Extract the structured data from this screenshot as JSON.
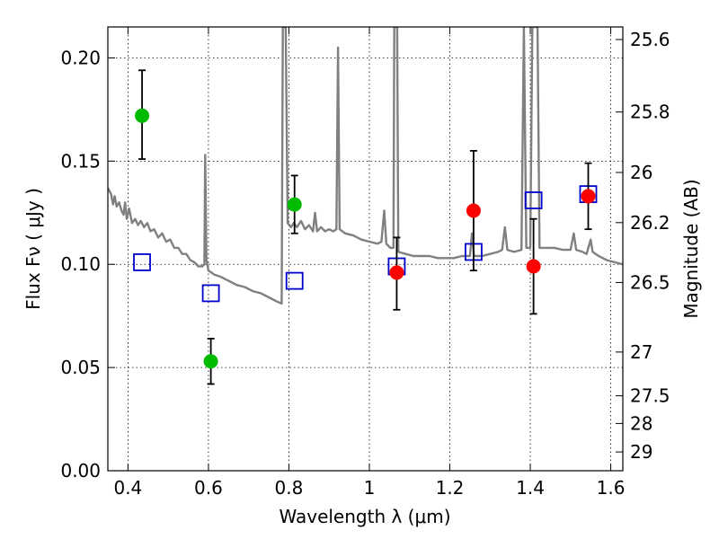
{
  "chart_data": {
    "type": "scatter",
    "xlabel": "Wavelength  λ (μm)",
    "ylabel": "Flux  Fν  ( μJy )",
    "ylabel_right": "Magnitude (AB)",
    "xlim": [
      0.35,
      1.63
    ],
    "ylim": [
      0.0,
      0.215
    ],
    "x_ticks": [
      0.4,
      0.6,
      0.8,
      1.0,
      1.2,
      1.4,
      1.6
    ],
    "x_tick_labels": [
      "0.4",
      "0.6",
      "0.8",
      "1",
      "1.2",
      "1.4",
      "1.6"
    ],
    "y_ticks": [
      0.0,
      0.05,
      0.1,
      0.15,
      0.2
    ],
    "y_tick_labels": [
      "0.00",
      "0.05",
      "0.10",
      "0.15",
      "0.20"
    ],
    "right_ticks": [
      {
        "label": "25.6",
        "flux": 0.2089
      },
      {
        "label": "25.8",
        "flux": 0.1738
      },
      {
        "label": "26",
        "flux": 0.1445
      },
      {
        "label": "26.2",
        "flux": 0.1202
      },
      {
        "label": "26.5",
        "flux": 0.0912
      },
      {
        "label": "27",
        "flux": 0.0575
      },
      {
        "label": "27.5",
        "flux": 0.0363
      },
      {
        "label": "28",
        "flux": 0.0229
      },
      {
        "label": "29",
        "flux": 0.0091
      }
    ],
    "grid": true,
    "series": [
      {
        "kind": "points",
        "color": "#00bb00",
        "marker": "circle",
        "points": [
          {
            "x": 0.435,
            "y": 0.172,
            "err_lo": 0.151,
            "err_hi": 0.194
          },
          {
            "x": 0.606,
            "y": 0.053,
            "err_lo": 0.042,
            "err_hi": 0.064
          },
          {
            "x": 0.814,
            "y": 0.129,
            "err_lo": 0.115,
            "err_hi": 0.143
          }
        ]
      },
      {
        "kind": "points",
        "color": "#ff0000",
        "marker": "circle",
        "points": [
          {
            "x": 1.068,
            "y": 0.096,
            "err_lo": 0.078,
            "err_hi": 0.113
          },
          {
            "x": 1.259,
            "y": 0.126,
            "err_lo": 0.097,
            "err_hi": 0.155
          },
          {
            "x": 1.408,
            "y": 0.099,
            "err_lo": 0.076,
            "err_hi": 0.122
          },
          {
            "x": 1.544,
            "y": 0.133,
            "err_lo": 0.117,
            "err_hi": 0.149
          }
        ]
      },
      {
        "kind": "points",
        "color": "#0000cc",
        "marker": "open-square",
        "points": [
          {
            "x": 0.435,
            "y": 0.101
          },
          {
            "x": 0.606,
            "y": 0.086
          },
          {
            "x": 0.814,
            "y": 0.092
          },
          {
            "x": 1.068,
            "y": 0.099
          },
          {
            "x": 1.259,
            "y": 0.106
          },
          {
            "x": 1.408,
            "y": 0.131
          },
          {
            "x": 1.544,
            "y": 0.134
          }
        ]
      },
      {
        "kind": "line",
        "color": "#808080",
        "points": [
          [
            0.35,
            0.137
          ],
          [
            0.358,
            0.134
          ],
          [
            0.363,
            0.129
          ],
          [
            0.367,
            0.133
          ],
          [
            0.372,
            0.128
          ],
          [
            0.378,
            0.13
          ],
          [
            0.384,
            0.126
          ],
          [
            0.389,
            0.124
          ],
          [
            0.393,
            0.13
          ],
          [
            0.397,
            0.122
          ],
          [
            0.403,
            0.127
          ],
          [
            0.41,
            0.12
          ],
          [
            0.418,
            0.122
          ],
          [
            0.425,
            0.119
          ],
          [
            0.432,
            0.121
          ],
          [
            0.44,
            0.118
          ],
          [
            0.448,
            0.12
          ],
          [
            0.456,
            0.116
          ],
          [
            0.465,
            0.117
          ],
          [
            0.475,
            0.113
          ],
          [
            0.485,
            0.115
          ],
          [
            0.495,
            0.111
          ],
          [
            0.505,
            0.112
          ],
          [
            0.515,
            0.108
          ],
          [
            0.525,
            0.108
          ],
          [
            0.535,
            0.105
          ],
          [
            0.545,
            0.105
          ],
          [
            0.555,
            0.102
          ],
          [
            0.565,
            0.101
          ],
          [
            0.575,
            0.099
          ],
          [
            0.585,
            0.099
          ],
          [
            0.59,
            0.1
          ],
          [
            0.592,
            0.153
          ],
          [
            0.595,
            0.102
          ],
          [
            0.6,
            0.097
          ],
          [
            0.615,
            0.095
          ],
          [
            0.63,
            0.094
          ],
          [
            0.65,
            0.092
          ],
          [
            0.67,
            0.09
          ],
          [
            0.69,
            0.089
          ],
          [
            0.71,
            0.087
          ],
          [
            0.73,
            0.086
          ],
          [
            0.75,
            0.084
          ],
          [
            0.77,
            0.082
          ],
          [
            0.782,
            0.081
          ],
          [
            0.785,
            0.215
          ],
          [
            0.792,
            0.215
          ],
          [
            0.797,
            0.12
          ],
          [
            0.805,
            0.118
          ],
          [
            0.812,
            0.12
          ],
          [
            0.82,
            0.118
          ],
          [
            0.83,
            0.121
          ],
          [
            0.84,
            0.117
          ],
          [
            0.85,
            0.119
          ],
          [
            0.86,
            0.116
          ],
          [
            0.865,
            0.125
          ],
          [
            0.87,
            0.116
          ],
          [
            0.88,
            0.118
          ],
          [
            0.89,
            0.116
          ],
          [
            0.9,
            0.117
          ],
          [
            0.91,
            0.116
          ],
          [
            0.918,
            0.117
          ],
          [
            0.922,
            0.205
          ],
          [
            0.926,
            0.117
          ],
          [
            0.94,
            0.115
          ],
          [
            0.96,
            0.114
          ],
          [
            0.98,
            0.112
          ],
          [
            1.0,
            0.111
          ],
          [
            1.02,
            0.11
          ],
          [
            1.03,
            0.111
          ],
          [
            1.037,
            0.126
          ],
          [
            1.042,
            0.11
          ],
          [
            1.052,
            0.108
          ],
          [
            1.06,
            0.108
          ],
          [
            1.062,
            0.215
          ],
          [
            1.069,
            0.215
          ],
          [
            1.072,
            0.106
          ],
          [
            1.09,
            0.105
          ],
          [
            1.11,
            0.104
          ],
          [
            1.13,
            0.104
          ],
          [
            1.15,
            0.104
          ],
          [
            1.17,
            0.103
          ],
          [
            1.19,
            0.103
          ],
          [
            1.21,
            0.103
          ],
          [
            1.23,
            0.104
          ],
          [
            1.25,
            0.104
          ],
          [
            1.255,
            0.115
          ],
          [
            1.26,
            0.104
          ],
          [
            1.28,
            0.104
          ],
          [
            1.3,
            0.105
          ],
          [
            1.32,
            0.106
          ],
          [
            1.33,
            0.107
          ],
          [
            1.337,
            0.118
          ],
          [
            1.343,
            0.107
          ],
          [
            1.36,
            0.106
          ],
          [
            1.378,
            0.107
          ],
          [
            1.384,
            0.215
          ],
          [
            1.39,
            0.108
          ],
          [
            1.4,
            0.108
          ],
          [
            1.405,
            0.215
          ],
          [
            1.418,
            0.215
          ],
          [
            1.423,
            0.108
          ],
          [
            1.44,
            0.108
          ],
          [
            1.46,
            0.108
          ],
          [
            1.48,
            0.107
          ],
          [
            1.5,
            0.107
          ],
          [
            1.508,
            0.115
          ],
          [
            1.514,
            0.107
          ],
          [
            1.53,
            0.106
          ],
          [
            1.54,
            0.105
          ],
          [
            1.55,
            0.112
          ],
          [
            1.555,
            0.106
          ],
          [
            1.57,
            0.104
          ],
          [
            1.59,
            0.102
          ],
          [
            1.61,
            0.101
          ],
          [
            1.63,
            0.1
          ]
        ]
      }
    ]
  }
}
